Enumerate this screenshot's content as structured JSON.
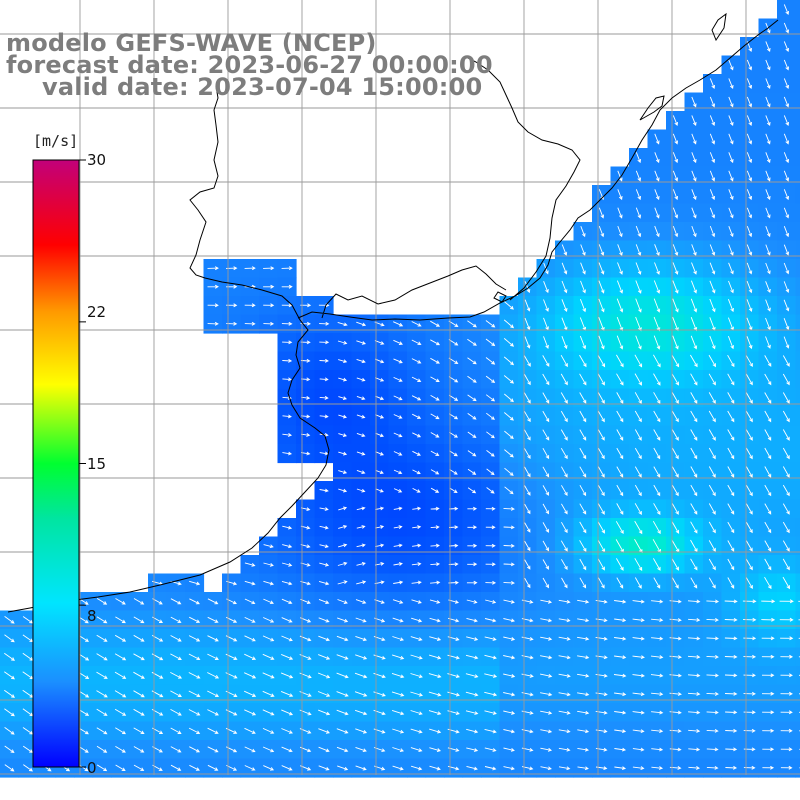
{
  "title": {
    "model": "modelo GEFS-WAVE (NCEP)",
    "forecast": "forecast date: 2023-06-27 00:00:00",
    "valid": "valid date: 2023-07-04 15:00:00"
  },
  "legend": {
    "unit": "[m/s]",
    "ticks": [
      "30",
      "22",
      "15",
      "8",
      "0"
    ],
    "min": 0,
    "max": 30,
    "tick_values": [
      30,
      22,
      15,
      8,
      0
    ],
    "colors": [
      "#0000ff",
      "#1b8fff",
      "#00e5ff",
      "#00ff30",
      "#ffff00",
      "#ff9a00",
      "#ff0000",
      "#c2007a"
    ]
  },
  "map": {
    "land_color": "#ffffff",
    "coastline_color": "#000000",
    "grid_color": "#9a9a9a",
    "arrow_color": "#ffffff",
    "contour_color": "#8a8a8a",
    "grid_lines": "on"
  }
}
